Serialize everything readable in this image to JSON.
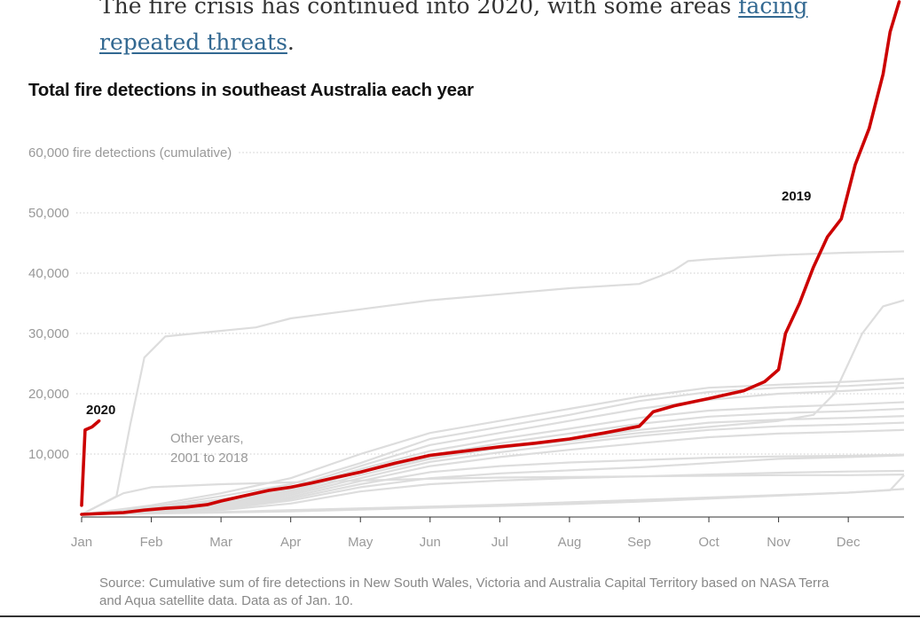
{
  "article": {
    "lead_text": "The fire crisis has continued into 2020, with some areas ",
    "lead_link": "facing repeated threats",
    "lead_end": "."
  },
  "chart": {
    "title": "Total fire detections in southeast Australia each year",
    "source": "Source: Cumulative sum of fire detections in New South Wales, Victoria and Australia Capital Territory based on NASA Terra and Aqua satellite data. Data as of Jan. 10."
  },
  "colors": {
    "highlight": "#cc0000",
    "other_years": "#dddddd",
    "grid": "#cccccc",
    "axis": "#333333",
    "link": "#326891"
  },
  "chart_data": {
    "type": "line",
    "title": "Total fire detections in southeast Australia each year",
    "xlabel": "",
    "ylabel": "60,000 fire detections (cumulative)",
    "x_unit": "month of year",
    "xlim": [
      0,
      11.8
    ],
    "ylim": [
      0,
      65000
    ],
    "x_ticks": [
      "Jan",
      "Feb",
      "Mar",
      "Apr",
      "May",
      "Jun",
      "Jul",
      "Aug",
      "Sep",
      "Oct",
      "Nov",
      "Dec"
    ],
    "y_ticks": [
      10000,
      20000,
      30000,
      40000,
      50000,
      60000
    ],
    "y_tick_labels": [
      "10,000",
      "20,000",
      "30,000",
      "40,000",
      "50,000",
      "60,000 fire detections (cumulative)"
    ],
    "grid": "horizontal dotted",
    "annotations": [
      {
        "text": "2019"
      },
      {
        "text": "2020"
      },
      {
        "text": "Other years,"
      },
      {
        "text": "2001 to 2018"
      }
    ],
    "highlight_series": [
      {
        "name": "2019",
        "color": "#cc0000",
        "points": [
          [
            0,
            0
          ],
          [
            0.6,
            300
          ],
          [
            0.9,
            700
          ],
          [
            1.2,
            1000
          ],
          [
            1.5,
            1200
          ],
          [
            1.8,
            1600
          ],
          [
            2,
            2200
          ],
          [
            2.3,
            3000
          ],
          [
            2.7,
            4000
          ],
          [
            3,
            4500
          ],
          [
            3.3,
            5200
          ],
          [
            3.6,
            6000
          ],
          [
            4,
            7000
          ],
          [
            4.5,
            8500
          ],
          [
            5,
            9800
          ],
          [
            5.5,
            10500
          ],
          [
            6,
            11200
          ],
          [
            6.5,
            11800
          ],
          [
            7,
            12500
          ],
          [
            7.5,
            13500
          ],
          [
            8,
            14600
          ],
          [
            8.2,
            17000
          ],
          [
            8.5,
            18000
          ],
          [
            9,
            19200
          ],
          [
            9.5,
            20500
          ],
          [
            9.8,
            22000
          ],
          [
            9.9,
            23000
          ],
          [
            10,
            24000
          ],
          [
            10.1,
            30000
          ],
          [
            10.3,
            35000
          ],
          [
            10.5,
            41000
          ],
          [
            10.7,
            46000
          ],
          [
            10.9,
            49000
          ],
          [
            11.1,
            58000
          ],
          [
            11.3,
            64000
          ],
          [
            11.5,
            73000
          ],
          [
            11.6,
            80000
          ],
          [
            11.73,
            85000
          ]
        ]
      },
      {
        "name": "2020",
        "color": "#cc0000",
        "points": [
          [
            0,
            1500
          ],
          [
            0.05,
            14000
          ],
          [
            0.15,
            14500
          ],
          [
            0.25,
            15500
          ]
        ]
      }
    ],
    "other_years_series": [
      {
        "points": [
          [
            0,
            0
          ],
          [
            0.5,
            3000
          ],
          [
            0.7,
            15000
          ],
          [
            0.9,
            26000
          ],
          [
            1.2,
            29500
          ],
          [
            1.8,
            30200
          ],
          [
            2.5,
            31000
          ],
          [
            3,
            32500
          ],
          [
            4,
            34000
          ],
          [
            5,
            35500
          ],
          [
            6,
            36500
          ],
          [
            7,
            37500
          ],
          [
            8,
            38200
          ],
          [
            8.3,
            39500
          ],
          [
            8.5,
            40500
          ],
          [
            8.7,
            42000
          ],
          [
            9,
            42300
          ],
          [
            10,
            43000
          ],
          [
            11,
            43400
          ],
          [
            11.8,
            43600
          ]
        ]
      },
      {
        "points": [
          [
            0,
            0
          ],
          [
            1,
            1000
          ],
          [
            2,
            2500
          ],
          [
            3,
            4000
          ],
          [
            4,
            7000
          ],
          [
            5,
            9500
          ],
          [
            6,
            11000
          ],
          [
            7,
            12200
          ],
          [
            8,
            13500
          ],
          [
            9,
            14500
          ],
          [
            10,
            15500
          ],
          [
            10.5,
            16500
          ],
          [
            10.8,
            20000
          ],
          [
            11,
            25000
          ],
          [
            11.2,
            30000
          ],
          [
            11.5,
            34500
          ],
          [
            11.8,
            35500
          ]
        ]
      },
      {
        "points": [
          [
            0,
            0
          ],
          [
            1,
            1500
          ],
          [
            2,
            3500
          ],
          [
            3,
            6000
          ],
          [
            4,
            10000
          ],
          [
            5,
            13500
          ],
          [
            6,
            15500
          ],
          [
            7,
            17500
          ],
          [
            8,
            19500
          ],
          [
            9,
            21000
          ],
          [
            10,
            21500
          ],
          [
            11,
            22000
          ],
          [
            11.8,
            22500
          ]
        ]
      },
      {
        "points": [
          [
            0,
            0
          ],
          [
            1,
            1200
          ],
          [
            2,
            3000
          ],
          [
            3,
            5000
          ],
          [
            4,
            8500
          ],
          [
            5,
            12500
          ],
          [
            6,
            14500
          ],
          [
            7,
            16500
          ],
          [
            8,
            18800
          ],
          [
            9,
            20300
          ],
          [
            10,
            21000
          ],
          [
            11,
            21300
          ],
          [
            11.8,
            21800
          ]
        ]
      },
      {
        "points": [
          [
            0,
            0
          ],
          [
            1,
            900
          ],
          [
            2,
            2400
          ],
          [
            3,
            4500
          ],
          [
            4,
            8000
          ],
          [
            5,
            11500
          ],
          [
            6,
            13500
          ],
          [
            7,
            15500
          ],
          [
            8,
            17500
          ],
          [
            9,
            19000
          ],
          [
            10,
            20000
          ],
          [
            11,
            20500
          ],
          [
            11.8,
            21000
          ]
        ]
      },
      {
        "points": [
          [
            0,
            0
          ],
          [
            1,
            800
          ],
          [
            2,
            2000
          ],
          [
            3,
            4200
          ],
          [
            4,
            7500
          ],
          [
            5,
            10500
          ],
          [
            6,
            12500
          ],
          [
            7,
            14200
          ],
          [
            8,
            16000
          ],
          [
            9,
            17200
          ],
          [
            10,
            17800
          ],
          [
            11,
            18200
          ],
          [
            11.8,
            18600
          ]
        ]
      },
      {
        "points": [
          [
            0,
            0
          ],
          [
            1,
            700
          ],
          [
            2,
            1800
          ],
          [
            3,
            3800
          ],
          [
            4,
            7000
          ],
          [
            5,
            9800
          ],
          [
            6,
            11800
          ],
          [
            7,
            13400
          ],
          [
            8,
            15000
          ],
          [
            9,
            16200
          ],
          [
            10,
            16800
          ],
          [
            11,
            17100
          ],
          [
            11.8,
            17500
          ]
        ]
      },
      {
        "points": [
          [
            0,
            0
          ],
          [
            1,
            600
          ],
          [
            2,
            1600
          ],
          [
            3,
            3500
          ],
          [
            4,
            6500
          ],
          [
            5,
            9200
          ],
          [
            6,
            11000
          ],
          [
            7,
            12500
          ],
          [
            8,
            14000
          ],
          [
            9,
            15200
          ],
          [
            10,
            15700
          ],
          [
            11,
            16000
          ],
          [
            11.8,
            16300
          ]
        ]
      },
      {
        "points": [
          [
            0,
            0
          ],
          [
            1,
            500
          ],
          [
            2,
            1400
          ],
          [
            3,
            3200
          ],
          [
            4,
            6000
          ],
          [
            5,
            8700
          ],
          [
            6,
            10300
          ],
          [
            7,
            11700
          ],
          [
            8,
            13000
          ],
          [
            9,
            14000
          ],
          [
            10,
            14600
          ],
          [
            11,
            14900
          ],
          [
            11.8,
            15200
          ]
        ]
      },
      {
        "points": [
          [
            0,
            0
          ],
          [
            1,
            400
          ],
          [
            2,
            1200
          ],
          [
            3,
            2900
          ],
          [
            4,
            5500
          ],
          [
            5,
            8000
          ],
          [
            6,
            9500
          ],
          [
            7,
            10700
          ],
          [
            8,
            11800
          ],
          [
            9,
            12800
          ],
          [
            10,
            13400
          ],
          [
            11,
            13700
          ],
          [
            11.8,
            14000
          ]
        ]
      },
      {
        "points": [
          [
            0,
            0
          ],
          [
            1,
            350
          ],
          [
            2,
            1000
          ],
          [
            3,
            2600
          ],
          [
            4,
            5000
          ],
          [
            5,
            7000
          ],
          [
            6,
            8000
          ],
          [
            7,
            8600
          ],
          [
            8,
            9000
          ],
          [
            9,
            9400
          ],
          [
            10,
            9600
          ],
          [
            11,
            9700
          ],
          [
            11.8,
            9900
          ]
        ]
      },
      {
        "points": [
          [
            0,
            0
          ],
          [
            1,
            300
          ],
          [
            2,
            900
          ],
          [
            3,
            2300
          ],
          [
            4,
            4500
          ],
          [
            5,
            6000
          ],
          [
            6,
            6800
          ],
          [
            7,
            7300
          ],
          [
            8,
            7800
          ],
          [
            9,
            8500
          ],
          [
            10,
            9200
          ],
          [
            11,
            9500
          ],
          [
            11.8,
            9800
          ]
        ]
      },
      {
        "points": [
          [
            0,
            0
          ],
          [
            1,
            250
          ],
          [
            2,
            700
          ],
          [
            3,
            1800
          ],
          [
            4,
            3800
          ],
          [
            5,
            5000
          ],
          [
            6,
            5600
          ],
          [
            7,
            6000
          ],
          [
            8,
            6300
          ],
          [
            9,
            6600
          ],
          [
            10,
            6900
          ],
          [
            11,
            7100
          ],
          [
            11.8,
            7200
          ]
        ]
      },
      {
        "points": [
          [
            0,
            0
          ],
          [
            0.6,
            3500
          ],
          [
            1,
            4500
          ],
          [
            2,
            5000
          ],
          [
            3,
            5300
          ],
          [
            4,
            5600
          ],
          [
            5,
            5900
          ],
          [
            6,
            6100
          ],
          [
            7,
            6200
          ],
          [
            8,
            6300
          ],
          [
            9,
            6400
          ],
          [
            10,
            6500
          ],
          [
            11,
            6500
          ],
          [
            11.8,
            6600
          ]
        ]
      },
      {
        "points": [
          [
            0,
            0
          ],
          [
            1,
            200
          ],
          [
            2,
            400
          ],
          [
            3,
            700
          ],
          [
            4,
            1000
          ],
          [
            5,
            1300
          ],
          [
            6,
            1600
          ],
          [
            7,
            2000
          ],
          [
            8,
            2400
          ],
          [
            9,
            2800
          ],
          [
            10,
            3200
          ],
          [
            11,
            3600
          ],
          [
            11.6,
            4000
          ],
          [
            11.8,
            6500
          ]
        ]
      },
      {
        "points": [
          [
            0,
            0
          ],
          [
            1,
            150
          ],
          [
            2,
            300
          ],
          [
            3,
            500
          ],
          [
            4,
            800
          ],
          [
            5,
            1100
          ],
          [
            6,
            1400
          ],
          [
            7,
            1700
          ],
          [
            8,
            2100
          ],
          [
            9,
            2600
          ],
          [
            10,
            3100
          ],
          [
            11,
            3600
          ],
          [
            11.8,
            4200
          ]
        ]
      }
    ]
  }
}
